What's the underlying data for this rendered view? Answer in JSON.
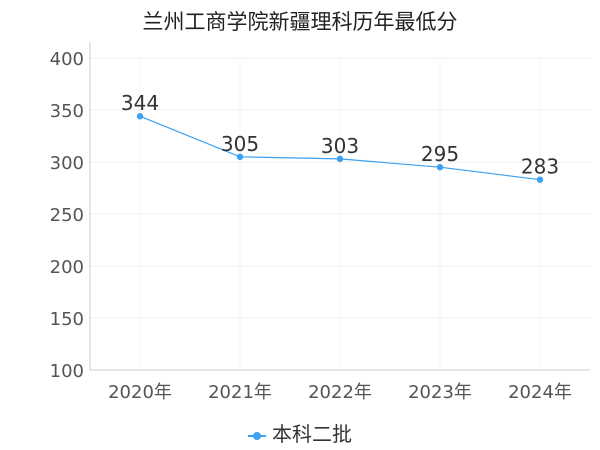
{
  "chart_data": {
    "type": "line",
    "title": "兰州工商学院新疆理科历年最低分",
    "categories": [
      "2020年",
      "2021年",
      "2022年",
      "2023年",
      "2024年"
    ],
    "series": [
      {
        "name": "本科二批",
        "values": [
          344,
          305,
          303,
          295,
          283
        ],
        "color": "#3ba1f0"
      }
    ],
    "yticks": [
      "100",
      "150",
      "200",
      "250",
      "300",
      "350",
      "400"
    ],
    "ylim": [
      100,
      400
    ],
    "grid": true,
    "legend": "bottom-center"
  }
}
